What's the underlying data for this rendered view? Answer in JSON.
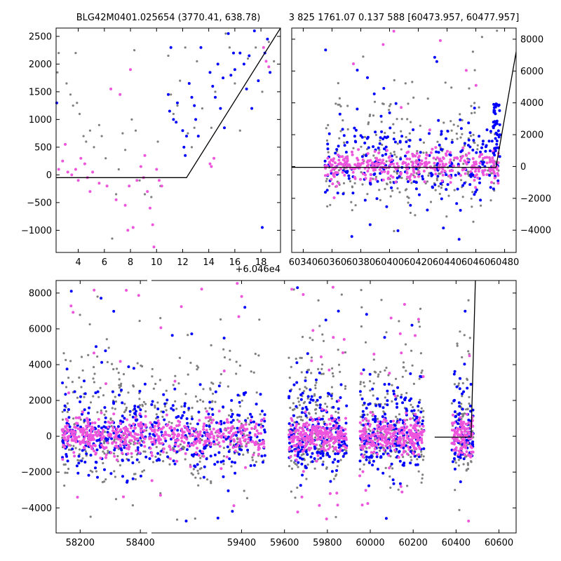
{
  "colors": {
    "gray": "#808080",
    "blue": "#0000ff",
    "magenta": "#ee55dd",
    "model": "#000000"
  },
  "chart_data": [
    {
      "type": "scatter",
      "title": "BLG42M0401.025654 (3770.41, 638.78)",
      "x_offset_label": "+6.046e4",
      "xlim": [
        2.3,
        19.5
      ],
      "ylim": [
        -1400,
        2650
      ],
      "x_ticks": [
        4,
        6,
        8,
        10,
        12,
        14,
        16,
        18
      ],
      "y_ticks": [
        -1000,
        -500,
        0,
        500,
        1000,
        1500,
        2000,
        2500
      ],
      "tick_labels_x": [
        "4",
        "6",
        "8",
        "10",
        "12",
        "14",
        "16",
        "18"
      ],
      "tick_labels_y": [
        "−1000",
        "−500",
        "0",
        "500",
        "1000",
        "1500",
        "2000",
        "2500"
      ],
      "y_axis_side": "left",
      "model_line": {
        "x": [
          2.3,
          12.3,
          19.5
        ],
        "y": [
          -50,
          -50,
          2650
        ]
      },
      "series": [
        {
          "color": "gray",
          "size": 1.6,
          "points": [
            [
              2.4,
              1850
            ],
            [
              2.5,
              2200
            ],
            [
              3.1,
              1650
            ],
            [
              3.4,
              1450
            ],
            [
              3.6,
              1250
            ],
            [
              3.8,
              2200
            ],
            [
              3.9,
              1300
            ],
            [
              4.1,
              1100
            ],
            [
              4.4,
              700
            ],
            [
              4.6,
              600
            ],
            [
              4.9,
              800
            ],
            [
              5.2,
              500
            ],
            [
              5.6,
              900
            ],
            [
              5.8,
              700
            ],
            [
              6.1,
              300
            ],
            [
              6.6,
              -1150
            ],
            [
              6.9,
              -350
            ],
            [
              7.1,
              100
            ],
            [
              7.4,
              750
            ],
            [
              7.6,
              450
            ],
            [
              7.9,
              -200
            ],
            [
              8.1,
              1000
            ],
            [
              8.3,
              2250
            ],
            [
              8.4,
              800
            ],
            [
              8.7,
              -100
            ],
            [
              9.1,
              -350
            ],
            [
              9.6,
              -400
            ],
            [
              10.1,
              600
            ],
            [
              10.3,
              -200
            ],
            [
              10.9,
              2150
            ],
            [
              11.1,
              1450
            ],
            [
              11.3,
              1100
            ],
            [
              11.6,
              1250
            ],
            [
              11.8,
              1700
            ],
            [
              12.2,
              2300
            ],
            [
              12.4,
              750
            ],
            [
              12.7,
              500
            ],
            [
              12.9,
              850
            ],
            [
              13.1,
              2050
            ],
            [
              13.5,
              1200
            ],
            [
              14.2,
              850
            ],
            [
              14.5,
              1500
            ],
            [
              15.3,
              2550
            ],
            [
              15.6,
              2300
            ],
            [
              16.0,
              1650
            ],
            [
              16.4,
              800
            ],
            [
              17.0,
              2100
            ],
            [
              17.6,
              2300
            ],
            [
              18.1,
              1500
            ],
            [
              18.6,
              2400
            ],
            [
              19.0,
              2050
            ]
          ]
        },
        {
          "color": "blue",
          "size": 2.0,
          "points": [
            [
              2.35,
              1300
            ],
            [
              10.9,
              1450
            ],
            [
              11.0,
              1150
            ],
            [
              11.1,
              2300
            ],
            [
              11.3,
              1000
            ],
            [
              11.5,
              950
            ],
            [
              11.6,
              1300
            ],
            [
              12.0,
              800
            ],
            [
              12.1,
              500
            ],
            [
              12.2,
              350
            ],
            [
              12.3,
              700
            ],
            [
              12.5,
              1650
            ],
            [
              12.7,
              1400
            ],
            [
              12.9,
              1250
            ],
            [
              13.0,
              1000
            ],
            [
              13.2,
              700
            ],
            [
              13.4,
              2300
            ],
            [
              14.1,
              1850
            ],
            [
              14.3,
              1600
            ],
            [
              14.5,
              1400
            ],
            [
              14.7,
              2000
            ],
            [
              14.9,
              1200
            ],
            [
              15.1,
              1750
            ],
            [
              15.2,
              850
            ],
            [
              15.5,
              2550
            ],
            [
              15.7,
              1800
            ],
            [
              15.9,
              2200
            ],
            [
              16.0,
              1900
            ],
            [
              16.4,
              2200
            ],
            [
              16.7,
              2000
            ],
            [
              16.9,
              1550
            ],
            [
              17.1,
              2150
            ],
            [
              17.3,
              1200
            ],
            [
              17.5,
              2600
            ],
            [
              17.8,
              1700
            ],
            [
              18.1,
              -950
            ],
            [
              18.3,
              2200
            ],
            [
              18.5,
              2450
            ],
            [
              18.7,
              1850
            ]
          ]
        },
        {
          "color": "magenta",
          "size": 2.0,
          "points": [
            [
              2.5,
              100
            ],
            [
              2.8,
              250
            ],
            [
              3.0,
              550
            ],
            [
              3.2,
              50
            ],
            [
              3.5,
              0
            ],
            [
              3.8,
              100
            ],
            [
              4.0,
              -100
            ],
            [
              4.2,
              300
            ],
            [
              4.5,
              200
            ],
            [
              4.7,
              -50
            ],
            [
              4.9,
              -300
            ],
            [
              5.1,
              50
            ],
            [
              5.6,
              -150
            ],
            [
              6.2,
              -200
            ],
            [
              6.5,
              1550
            ],
            [
              6.9,
              -450
            ],
            [
              7.2,
              1450
            ],
            [
              7.6,
              -550
            ],
            [
              7.8,
              -1000
            ],
            [
              7.9,
              -200
            ],
            [
              8.0,
              1900
            ],
            [
              8.2,
              -950
            ],
            [
              8.5,
              -100
            ],
            [
              8.8,
              150
            ],
            [
              9.0,
              -50
            ],
            [
              9.1,
              350
            ],
            [
              9.3,
              -300
            ],
            [
              9.5,
              -600
            ],
            [
              9.7,
              -900
            ],
            [
              9.8,
              -1300
            ],
            [
              10.0,
              100
            ],
            [
              10.2,
              -100
            ],
            [
              10.4,
              -200
            ],
            [
              14.1,
              200
            ],
            [
              14.2,
              150
            ],
            [
              14.4,
              300
            ],
            [
              18.2,
              2300
            ],
            [
              18.4,
              2050
            ],
            [
              18.6,
              1950
            ]
          ]
        }
      ]
    },
    {
      "type": "scatter",
      "title": "3 825 1761.07 0.137 588 [60473.957, 60477.957]",
      "xlim": [
        60332,
        60488
      ],
      "ylim": [
        -5400,
        8700
      ],
      "x_ticks": [
        60340,
        60360,
        60380,
        60400,
        60420,
        60440,
        60460,
        60480
      ],
      "y_ticks": [
        -4000,
        -2000,
        0,
        2000,
        4000,
        6000,
        8000
      ],
      "tick_labels_x": [
        "60340",
        "60360",
        "60380",
        "60400",
        "60420",
        "60440",
        "60460",
        "60480"
      ],
      "tick_labels_y": [
        "−4000",
        "−2000",
        "0",
        "2000",
        "4000",
        "6000",
        "8000"
      ],
      "y_axis_side": "right",
      "model_line": {
        "x": [
          60332,
          60474,
          60488
        ],
        "y": [
          -50,
          -50,
          7200
        ]
      },
      "clusters": [
        {
          "x_range": [
            60355,
            60476
          ],
          "points": 900,
          "spread": 1200,
          "tail": 0.12
        }
      ]
    },
    {
      "type": "scatter",
      "xlim": [
        58120,
        60680
      ],
      "ylim": [
        -5400,
        8700
      ],
      "x_ticks": [
        58200,
        58400,
        59400,
        59600,
        59800,
        60000,
        60200,
        60400,
        60600
      ],
      "y_ticks": [
        -4000,
        -2000,
        0,
        2000,
        4000,
        6000,
        8000
      ],
      "tick_labels_x": [
        "58200",
        "58400",
        "59400",
        "59600",
        "59800",
        "60000",
        "60200",
        "60400",
        "60600"
      ],
      "tick_labels_y": [
        "−4000",
        "−2000",
        "0",
        "2000",
        "4000",
        "6000",
        "8000"
      ],
      "y_axis_side": "left",
      "model_line": {
        "x": [
          60300,
          60470,
          60490
        ],
        "y": [
          -50,
          -50,
          8700
        ]
      },
      "seasons": [
        {
          "x_range": [
            58140,
            58420
          ]
        },
        {
          "x_range": [
            58970,
            59510
          ]
        },
        {
          "x_range": [
            59620,
            59890
          ]
        },
        {
          "x_range": [
            59950,
            60250
          ]
        },
        {
          "x_range": [
            60380,
            60480
          ]
        }
      ]
    }
  ]
}
